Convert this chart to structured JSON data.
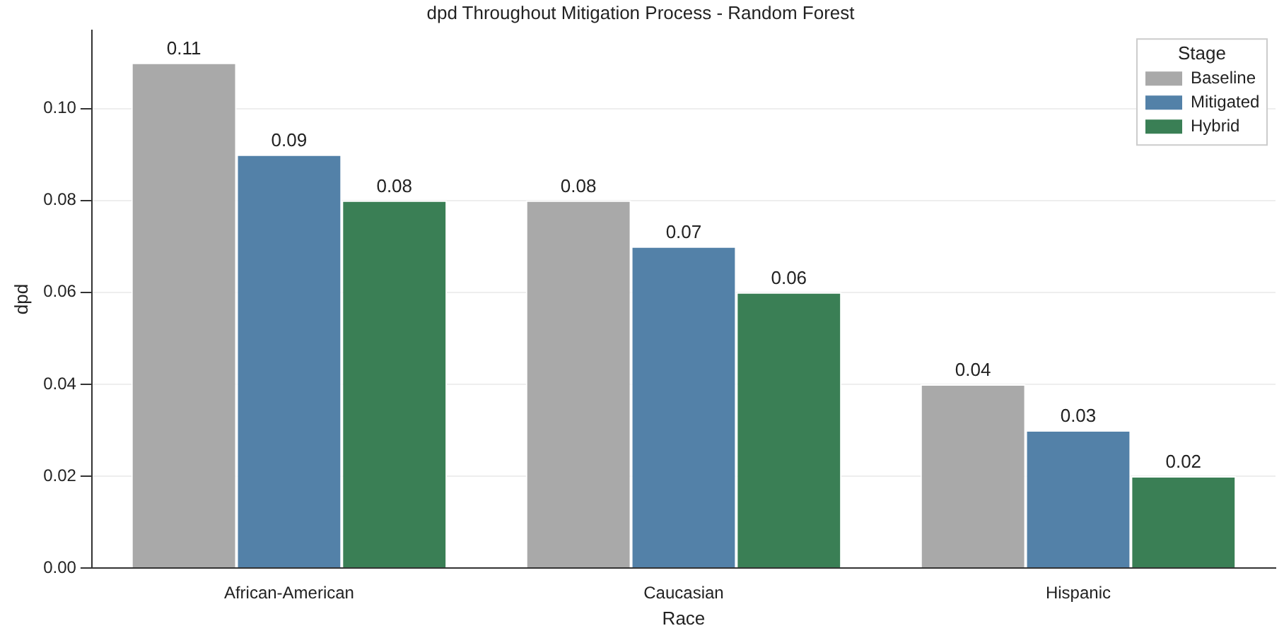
{
  "chart_data": {
    "type": "bar",
    "title": "dpd Throughout Mitigation Process - Random Forest",
    "xlabel": "Race",
    "ylabel": "dpd",
    "legend_title": "Stage",
    "categories": [
      "African-American",
      "Caucasian",
      "Hispanic"
    ],
    "series": [
      {
        "name": "Baseline",
        "color": "#a9a9a9",
        "values": [
          0.11,
          0.08,
          0.04
        ]
      },
      {
        "name": "Mitigated",
        "color": "#5381a8",
        "values": [
          0.09,
          0.07,
          0.03
        ]
      },
      {
        "name": "Hybrid",
        "color": "#3a7f55",
        "values": [
          0.08,
          0.06,
          0.02
        ]
      }
    ],
    "ylim": [
      0,
      0.117
    ],
    "yticks": [
      {
        "value": 0,
        "label": "0.00"
      },
      {
        "value": 0.02,
        "label": "0.02"
      },
      {
        "value": 0.04,
        "label": "0.04"
      },
      {
        "value": 0.06,
        "label": "0.06"
      },
      {
        "value": 0.08,
        "label": "0.08"
      },
      {
        "value": 0.1,
        "label": "0.10"
      }
    ],
    "grid": "y",
    "legend": "top right",
    "data_labels": true
  }
}
